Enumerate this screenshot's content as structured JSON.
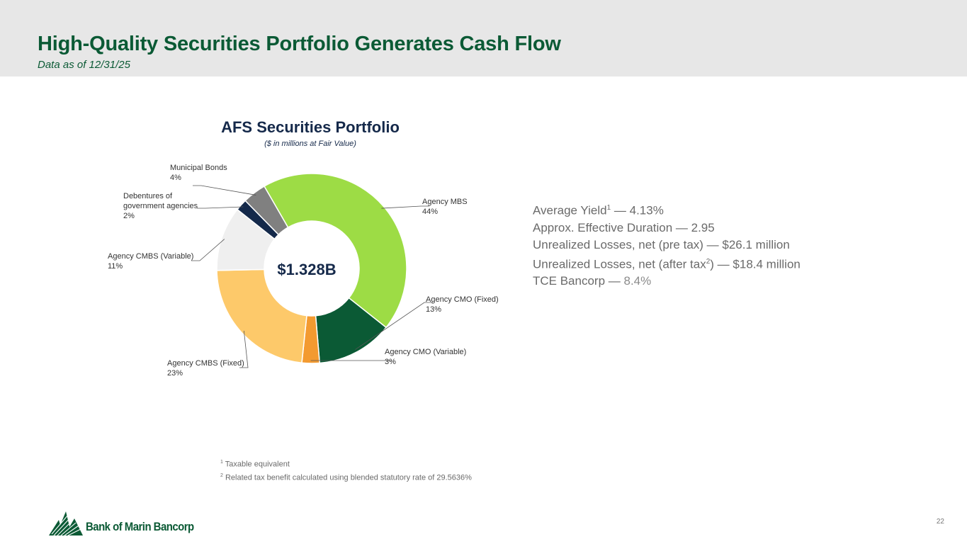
{
  "header": {
    "title": "High-Quality Securities Portfolio Generates Cash Flow",
    "subtitle": "Data as of 12/31/25"
  },
  "chart_data": {
    "type": "pie",
    "title": "AFS Securities Portfolio",
    "subtitle": "($ in millions at Fair Value)",
    "center_label": "$1.328B",
    "slices": [
      {
        "name": "Agency MBS",
        "percent_label": "44%",
        "value": 44,
        "color": "#9ddc45"
      },
      {
        "name": "Agency CMO (Fixed)",
        "percent_label": "13%",
        "value": 13,
        "color": "#0b5a35"
      },
      {
        "name": "Agency CMO (Variable)",
        "percent_label": "3%",
        "value": 3,
        "color": "#f39a30"
      },
      {
        "name": "Agency CMBS (Fixed)",
        "percent_label": "23%",
        "value": 23,
        "color": "#fdc96a"
      },
      {
        "name": "Agency CMBS (Variable)",
        "percent_label": "11%",
        "value": 11,
        "color": "#efefef"
      },
      {
        "name": "Debentures of government agencies",
        "label_lines": [
          "Debentures of",
          "government agencies"
        ],
        "percent_label": "2%",
        "value": 2,
        "color": "#14294a"
      },
      {
        "name": "Municipal Bonds",
        "percent_label": "4%",
        "value": 4,
        "color": "#808080"
      }
    ]
  },
  "stats": {
    "avg_yield_label": "Average Yield",
    "avg_yield_ref": "1",
    "avg_yield_value": " — 4.13%",
    "duration": "Approx. Effective Duration — 2.95",
    "unrealized_pre": "Unrealized Losses, net (pre tax) — $26.1 million",
    "unrealized_after_label": "Unrealized Losses, net (after tax",
    "unrealized_after_ref": "2",
    "unrealized_after_value": ") — $18.4 million",
    "tce_label": "TCE Bancorp — ",
    "tce_value": "8.4%"
  },
  "footnotes": {
    "n1_ref": "1",
    "n1": " Taxable equivalent",
    "n2_ref": "2",
    "n2": " Related tax benefit calculated using blended statutory rate of 29.5636%"
  },
  "footer": {
    "logo_text": "Bank of Marin Bancorp",
    "page_number": "22"
  },
  "colors": {
    "brand_green": "#0b5a35",
    "navy": "#15294a",
    "header_bg": "#e7e7e7"
  }
}
